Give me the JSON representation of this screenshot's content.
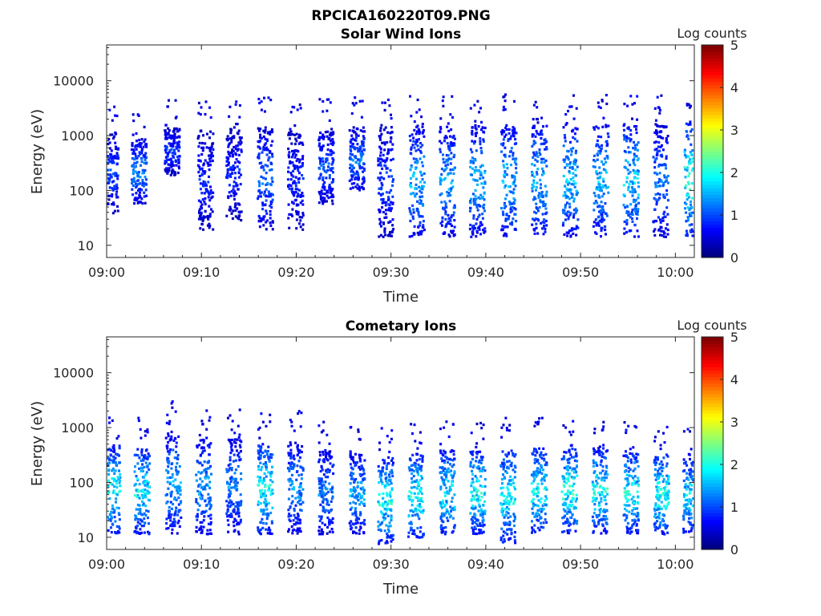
{
  "figure": {
    "title": "RPCICA160220T09.PNG"
  },
  "chart_data": [
    {
      "type": "heatmap",
      "title": "Solar Wind Ions",
      "xlabel": "Time",
      "ylabel": "Energy (eV)",
      "x_ticks": [
        "09:00",
        "09:10",
        "09:20",
        "09:30",
        "09:40",
        "09:50",
        "10:00"
      ],
      "xlim": [
        "09:00",
        "10:02"
      ],
      "y_scale": "log",
      "y_ticks": [
        "10",
        "100",
        "1000",
        "10000"
      ],
      "ylim": [
        6,
        45000
      ],
      "colorbar": {
        "label": "Log counts",
        "ticks": [
          "0",
          "1",
          "2",
          "3",
          "4",
          "5"
        ],
        "range": [
          0,
          5
        ],
        "colormap": "jet"
      },
      "bursts": [
        {
          "t": 0.0,
          "emin": 40,
          "emax": 1200,
          "peak": 1.2
        },
        {
          "t": 3.0,
          "emin": 60,
          "emax": 900,
          "peak": 1.6
        },
        {
          "t": 6.5,
          "emin": 200,
          "emax": 1500,
          "peak": 1.1
        },
        {
          "t": 10.0,
          "emin": 20,
          "emax": 1300,
          "peak": 1.0
        },
        {
          "t": 13.0,
          "emin": 30,
          "emax": 1500,
          "peak": 1.0
        },
        {
          "t": 16.3,
          "emin": 20,
          "emax": 1500,
          "peak": 1.4
        },
        {
          "t": 19.5,
          "emin": 20,
          "emax": 1300,
          "peak": 1.0
        },
        {
          "t": 22.7,
          "emin": 60,
          "emax": 1400,
          "peak": 1.3
        },
        {
          "t": 26.0,
          "emin": 100,
          "emax": 1500,
          "peak": 1.5
        },
        {
          "t": 29.0,
          "emin": 15,
          "emax": 1500,
          "peak": 1.2
        },
        {
          "t": 32.3,
          "emin": 15,
          "emax": 1600,
          "peak": 1.9
        },
        {
          "t": 35.5,
          "emin": 15,
          "emax": 1600,
          "peak": 1.8
        },
        {
          "t": 38.7,
          "emin": 15,
          "emax": 1600,
          "peak": 1.9
        },
        {
          "t": 42.0,
          "emin": 15,
          "emax": 1700,
          "peak": 1.9
        },
        {
          "t": 45.2,
          "emin": 15,
          "emax": 1700,
          "peak": 1.9
        },
        {
          "t": 48.5,
          "emin": 15,
          "emax": 1700,
          "peak": 2.0
        },
        {
          "t": 51.7,
          "emin": 15,
          "emax": 1700,
          "peak": 1.9
        },
        {
          "t": 54.9,
          "emin": 15,
          "emax": 1700,
          "peak": 2.1
        },
        {
          "t": 58.0,
          "emin": 15,
          "emax": 1700,
          "peak": 1.5
        },
        {
          "t": 61.3,
          "emin": 15,
          "emax": 1800,
          "peak": 2.6
        }
      ]
    },
    {
      "type": "heatmap",
      "title": "Cometary Ions",
      "xlabel": "Time",
      "ylabel": "Energy (eV)",
      "x_ticks": [
        "09:00",
        "09:10",
        "09:20",
        "09:30",
        "09:40",
        "09:50",
        "10:00"
      ],
      "xlim": [
        "09:00",
        "10:02"
      ],
      "y_scale": "log",
      "y_ticks": [
        "10",
        "100",
        "1000",
        "10000"
      ],
      "ylim": [
        6,
        45000
      ],
      "colorbar": {
        "label": "Log counts",
        "ticks": [
          "0",
          "1",
          "2",
          "3",
          "4",
          "5"
        ],
        "range": [
          0,
          5
        ],
        "colormap": "jet"
      },
      "bursts": [
        {
          "t": 0.2,
          "emin": 12,
          "emax": 500,
          "peak": 2.4
        },
        {
          "t": 3.3,
          "emin": 12,
          "emax": 450,
          "peak": 2.3
        },
        {
          "t": 6.6,
          "emin": 12,
          "emax": 900,
          "peak": 1.8
        },
        {
          "t": 9.8,
          "emin": 12,
          "emax": 700,
          "peak": 1.8
        },
        {
          "t": 13.0,
          "emin": 12,
          "emax": 700,
          "peak": 1.6
        },
        {
          "t": 16.3,
          "emin": 12,
          "emax": 550,
          "peak": 2.4
        },
        {
          "t": 19.5,
          "emin": 12,
          "emax": 600,
          "peak": 1.7
        },
        {
          "t": 22.7,
          "emin": 12,
          "emax": 400,
          "peak": 1.6
        },
        {
          "t": 26.0,
          "emin": 12,
          "emax": 350,
          "peak": 1.8
        },
        {
          "t": 29.0,
          "emin": 8,
          "emax": 300,
          "peak": 2.4
        },
        {
          "t": 32.2,
          "emin": 10,
          "emax": 350,
          "peak": 2.5
        },
        {
          "t": 35.5,
          "emin": 12,
          "emax": 400,
          "peak": 2.3
        },
        {
          "t": 38.7,
          "emin": 12,
          "emax": 400,
          "peak": 2.4
        },
        {
          "t": 41.9,
          "emin": 8,
          "emax": 450,
          "peak": 2.3
        },
        {
          "t": 45.2,
          "emin": 12,
          "emax": 450,
          "peak": 2.4
        },
        {
          "t": 48.4,
          "emin": 12,
          "emax": 450,
          "peak": 2.5
        },
        {
          "t": 51.6,
          "emin": 12,
          "emax": 450,
          "peak": 2.4
        },
        {
          "t": 54.9,
          "emin": 12,
          "emax": 400,
          "peak": 2.4
        },
        {
          "t": 58.1,
          "emin": 12,
          "emax": 350,
          "peak": 2.5
        },
        {
          "t": 61.2,
          "emin": 12,
          "emax": 300,
          "peak": 2.2
        }
      ]
    }
  ]
}
